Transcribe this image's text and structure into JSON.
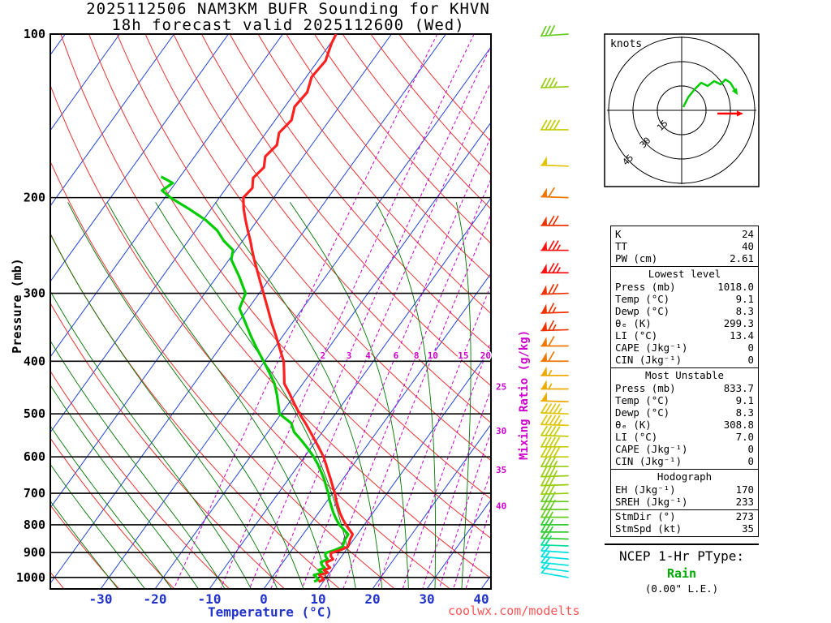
{
  "title": {
    "line1": "2025112506 NAM3KM BUFR Sounding for KHVN",
    "line2": "18h forecast valid 2025112600 (Wed)"
  },
  "watermark": "coolwx.com/modelts",
  "colors": {
    "isotherm": "#2244dd",
    "dry_adiabat": "#ee3333",
    "moist_adiabat": "#007700",
    "mixing_ratio": "#cc00cc",
    "temperature_trace": "#ff2020",
    "dewpoint_trace": "#00cc00",
    "axis_temp_label": "#2233cc",
    "pressure_label": "#000000",
    "watermark": "#ff5555",
    "rain_text": "#00aa00",
    "storm_motion": "#ff0000"
  },
  "chart_data": {
    "type": "line",
    "subtype": "skew-t-log-p sounding",
    "title": "2025112506 NAM3KM BUFR Sounding for KHVN / 18h forecast valid 2025112600 (Wed)",
    "xlabel": "Temperature (°C)",
    "ylabel": "Pressure (mb)",
    "mixing_ratio_axis_label": "Mixing Ratio (g/kg)",
    "y_axis": {
      "scale": "log",
      "ticks": [
        100,
        200,
        300,
        400,
        500,
        600,
        700,
        800,
        900,
        1000
      ],
      "range": [
        100,
        1050
      ]
    },
    "x_axis": {
      "ticks": [
        -30,
        -20,
        -10,
        0,
        10,
        20,
        30,
        40
      ]
    },
    "isotherm_step": 10,
    "dry_adiabats_theta_c": [
      -40,
      -30,
      -20,
      -10,
      0,
      10,
      20,
      30,
      40,
      50,
      60,
      70,
      80,
      90,
      100,
      110,
      120,
      130,
      140,
      150,
      160
    ],
    "moist_adiabats_thetaw_c": [
      -30,
      -25,
      -20,
      -15,
      -10,
      -5,
      0,
      5,
      10,
      15,
      20,
      25,
      30,
      35
    ],
    "mixing_ratio_lines": [
      1,
      2,
      3,
      4,
      6,
      8,
      10,
      15,
      20,
      25,
      30,
      35,
      40
    ],
    "mixing_ratio_row_labels": [
      2,
      3,
      4,
      6,
      8,
      10,
      15,
      20
    ],
    "mixing_ratio_edge_labels": [
      25,
      30,
      35,
      40
    ],
    "temperature_profile": {
      "name": "Temperature",
      "units": "°C",
      "points": [
        [
          1018,
          9.1
        ],
        [
          1010,
          9.8
        ],
        [
          1000,
          9.2
        ],
        [
          990,
          8.4
        ],
        [
          980,
          9.6
        ],
        [
          970,
          8.6
        ],
        [
          960,
          9.4
        ],
        [
          950,
          8.6
        ],
        [
          938,
          8.0
        ],
        [
          926,
          8.8
        ],
        [
          914,
          8.0
        ],
        [
          902,
          7.6
        ],
        [
          890,
          9.0
        ],
        [
          878,
          9.9
        ],
        [
          864,
          9.6
        ],
        [
          850,
          9.3
        ],
        [
          833,
          9.1
        ],
        [
          818,
          8.0
        ],
        [
          800,
          6.6
        ],
        [
          780,
          5.2
        ],
        [
          760,
          3.9
        ],
        [
          740,
          2.7
        ],
        [
          720,
          1.5
        ],
        [
          700,
          0.4
        ],
        [
          680,
          -0.9
        ],
        [
          660,
          -2.2
        ],
        [
          640,
          -3.6
        ],
        [
          620,
          -5.0
        ],
        [
          600,
          -6.5
        ],
        [
          580,
          -8.3
        ],
        [
          560,
          -10.2
        ],
        [
          540,
          -12.2
        ],
        [
          520,
          -14.3
        ],
        [
          500,
          -16.6
        ],
        [
          480,
          -18.8
        ],
        [
          460,
          -21.0
        ],
        [
          440,
          -23.4
        ],
        [
          420,
          -24.9
        ],
        [
          400,
          -26.5
        ],
        [
          380,
          -28.8
        ],
        [
          360,
          -31.2
        ],
        [
          340,
          -33.8
        ],
        [
          320,
          -36.4
        ],
        [
          300,
          -39.2
        ],
        [
          280,
          -42.2
        ],
        [
          260,
          -45.4
        ],
        [
          250,
          -47.0
        ],
        [
          240,
          -48.6
        ],
        [
          230,
          -50.4
        ],
        [
          220,
          -52.2
        ],
        [
          210,
          -54.0
        ],
        [
          200,
          -55.6
        ],
        [
          192,
          -55.2
        ],
        [
          184,
          -56.4
        ],
        [
          176,
          -55.8
        ],
        [
          168,
          -57.0
        ],
        [
          160,
          -56.4
        ],
        [
          152,
          -57.6
        ],
        [
          144,
          -57.0
        ],
        [
          136,
          -58.2
        ],
        [
          128,
          -57.8
        ],
        [
          120,
          -59.0
        ],
        [
          112,
          -58.6
        ],
        [
          104,
          -59.8
        ],
        [
          100,
          -60.2
        ]
      ]
    },
    "dewpoint_profile": {
      "name": "Dewpoint",
      "units": "°C",
      "points": [
        [
          1018,
          8.3
        ],
        [
          1010,
          8.8
        ],
        [
          1000,
          8.2
        ],
        [
          990,
          7.4
        ],
        [
          980,
          8.6
        ],
        [
          970,
          7.6
        ],
        [
          960,
          8.4
        ],
        [
          950,
          7.6
        ],
        [
          938,
          7.0
        ],
        [
          926,
          7.8
        ],
        [
          914,
          7.0
        ],
        [
          902,
          6.6
        ],
        [
          890,
          8.0
        ],
        [
          878,
          8.9
        ],
        [
          864,
          8.6
        ],
        [
          850,
          8.4
        ],
        [
          833,
          8.3
        ],
        [
          818,
          7.0
        ],
        [
          800,
          5.4
        ],
        [
          780,
          4.0
        ],
        [
          760,
          2.7
        ],
        [
          740,
          1.5
        ],
        [
          720,
          0.3
        ],
        [
          700,
          -0.8
        ],
        [
          680,
          -2.1
        ],
        [
          660,
          -3.4
        ],
        [
          640,
          -4.9
        ],
        [
          620,
          -6.5
        ],
        [
          600,
          -8.3
        ],
        [
          580,
          -10.4
        ],
        [
          560,
          -12.7
        ],
        [
          540,
          -15.2
        ],
        [
          520,
          -16.9
        ],
        [
          500,
          -20.3
        ],
        [
          480,
          -21.8
        ],
        [
          460,
          -23.4
        ],
        [
          440,
          -25.2
        ],
        [
          420,
          -27.6
        ],
        [
          400,
          -30.2
        ],
        [
          380,
          -33.0
        ],
        [
          360,
          -35.8
        ],
        [
          340,
          -38.6
        ],
        [
          320,
          -41.6
        ],
        [
          300,
          -42.5
        ],
        [
          280,
          -45.8
        ],
        [
          260,
          -49.6
        ],
        [
          250,
          -50.5
        ],
        [
          240,
          -53.5
        ],
        [
          230,
          -56.0
        ],
        [
          220,
          -59.5
        ],
        [
          210,
          -64.0
        ],
        [
          200,
          -69.0
        ],
        [
          194,
          -71.5
        ],
        [
          188,
          -70.5
        ],
        [
          183,
          -73.5
        ]
      ]
    },
    "winds_p_dir_spd": [
      [
        1000,
        280,
        12
      ],
      [
        975,
        278,
        13
      ],
      [
        950,
        276,
        14
      ],
      [
        925,
        275,
        15
      ],
      [
        900,
        274,
        16
      ],
      [
        875,
        272,
        18
      ],
      [
        850,
        272,
        21
      ],
      [
        825,
        270,
        23
      ],
      [
        800,
        270,
        25
      ],
      [
        775,
        270,
        26
      ],
      [
        750,
        270,
        28
      ],
      [
        725,
        270,
        29
      ],
      [
        700,
        268,
        31
      ],
      [
        675,
        268,
        32
      ],
      [
        650,
        268,
        34
      ],
      [
        625,
        270,
        36
      ],
      [
        600,
        270,
        38
      ],
      [
        575,
        270,
        40
      ],
      [
        550,
        272,
        42
      ],
      [
        525,
        272,
        44
      ],
      [
        500,
        272,
        47
      ],
      [
        475,
        272,
        50
      ],
      [
        450,
        270,
        53
      ],
      [
        425,
        270,
        55
      ],
      [
        400,
        270,
        58
      ],
      [
        375,
        270,
        61
      ],
      [
        350,
        268,
        64
      ],
      [
        325,
        268,
        67
      ],
      [
        300,
        268,
        70
      ],
      [
        275,
        270,
        73
      ],
      [
        250,
        270,
        75
      ],
      [
        225,
        270,
        68
      ],
      [
        200,
        272,
        58
      ],
      [
        175,
        272,
        48
      ],
      [
        150,
        270,
        40
      ],
      [
        125,
        268,
        34
      ],
      [
        100,
        266,
        30
      ]
    ],
    "wind_colormap": [
      [
        16,
        "#00e0e0"
      ],
      [
        20,
        "#00dd99"
      ],
      [
        25,
        "#33cc33"
      ],
      [
        30,
        "#66cc22"
      ],
      [
        36,
        "#99cc11"
      ],
      [
        42,
        "#c4cc00"
      ],
      [
        48,
        "#e0c400"
      ],
      [
        55,
        "#eeaa00"
      ],
      [
        63,
        "#ee7700"
      ],
      [
        72,
        "#ee3300"
      ],
      [
        999,
        "#ff1111"
      ]
    ],
    "hodograph": {
      "unit_label": "knots",
      "rings_kt": [
        15,
        30,
        45
      ],
      "trace_uv_kt": [
        [
          1,
          2
        ],
        [
          4,
          8
        ],
        [
          8,
          13
        ],
        [
          12,
          17
        ],
        [
          16,
          15
        ],
        [
          20,
          18
        ],
        [
          24,
          16
        ],
        [
          27,
          19
        ],
        [
          30,
          17
        ],
        [
          33,
          12
        ]
      ],
      "storm_motion_uv_k": [
        [
          22,
          -2
        ],
        [
          35,
          -2
        ]
      ]
    }
  },
  "indices": {
    "summary": [
      {
        "label": "K",
        "value": "24"
      },
      {
        "label": "TT",
        "value": "40"
      },
      {
        "label": "PW (cm)",
        "value": "2.61"
      }
    ],
    "sections": [
      {
        "header": "Lowest level",
        "rows": [
          {
            "label": "Press (mb)",
            "value": "1018.0"
          },
          {
            "label": "Temp (°C)",
            "value": "9.1"
          },
          {
            "label": "Dewp (°C)",
            "value": "8.3"
          },
          {
            "label": "θₑ (K)",
            "value": "299.3"
          },
          {
            "label": "LI (°C)",
            "value": "13.4"
          },
          {
            "label": "CAPE (Jkg⁻¹)",
            "value": "0"
          },
          {
            "label": "CIN (Jkg⁻¹)",
            "value": "0"
          }
        ]
      },
      {
        "header": "Most Unstable",
        "rows": [
          {
            "label": "Press (mb)",
            "value": "833.7"
          },
          {
            "label": "Temp (°C)",
            "value": "9.1"
          },
          {
            "label": "Dewp (°C)",
            "value": "8.3"
          },
          {
            "label": "θₑ (K)",
            "value": "308.8"
          },
          {
            "label": "LI (°C)",
            "value": "7.0"
          },
          {
            "label": "CAPE (Jkg⁻¹)",
            "value": "0"
          },
          {
            "label": "CIN (Jkg⁻¹)",
            "value": "0"
          }
        ]
      },
      {
        "header": "Hodograph",
        "rows": [
          {
            "label": "EH (Jkg⁻¹)",
            "value": "170"
          },
          {
            "label": "SREH (Jkg⁻¹)",
            "value": "233"
          }
        ]
      },
      {
        "header": "",
        "rows": [
          {
            "label": "StmDir (°)",
            "value": "273"
          },
          {
            "label": "StmSpd (kt)",
            "value": "35"
          }
        ]
      }
    ]
  },
  "ptype": {
    "heading": "NCEP 1-Hr PType:",
    "value": "Rain",
    "liquid_equiv": "(0.00\" L.E.)"
  }
}
